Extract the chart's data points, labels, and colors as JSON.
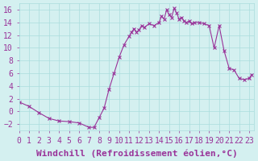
{
  "x": [
    0,
    1,
    2,
    3,
    4,
    5,
    6,
    7,
    7.5,
    8,
    8.5,
    9,
    9.5,
    10,
    10.5,
    11,
    11.25,
    11.5,
    11.75,
    12,
    12.25,
    12.5,
    13,
    13.5,
    14,
    14.25,
    14.5,
    14.75,
    15,
    15.25,
    15.5,
    15.75,
    16,
    16.25,
    16.5,
    16.75,
    17,
    17.25,
    17.5,
    18,
    18.5,
    19,
    19.5,
    20,
    20.5,
    21,
    21.5,
    22,
    22.5,
    23,
    23.25
  ],
  "y": [
    1.5,
    0.8,
    -0.2,
    -1.1,
    -1.5,
    -1.6,
    -1.8,
    -2.5,
    -2.5,
    -1.0,
    0.5,
    3.5,
    6.0,
    8.5,
    10.5,
    11.8,
    12.5,
    13.0,
    12.5,
    12.8,
    13.5,
    13.2,
    13.8,
    13.5,
    14.0,
    15.0,
    14.5,
    16.0,
    15.2,
    14.8,
    16.2,
    15.5,
    14.5,
    14.8,
    14.2,
    14.0,
    14.2,
    13.8,
    14.0,
    14.0,
    13.8,
    13.5,
    10.0,
    13.5,
    9.5,
    6.8,
    6.5,
    5.2,
    5.0,
    5.2,
    5.8
  ],
  "line_color": "#993399",
  "marker_color": "#993399",
  "bg_color": "#d4f0f0",
  "grid_color": "#aadddd",
  "xlabel": "Windchill (Refroidissement éolien,°C)",
  "xlim": [
    0,
    23.5
  ],
  "ylim": [
    -3,
    17
  ],
  "yticks": [
    -2,
    0,
    2,
    4,
    6,
    8,
    10,
    12,
    14,
    16
  ],
  "xticks": [
    0,
    1,
    2,
    3,
    4,
    5,
    6,
    7,
    8,
    9,
    10,
    11,
    12,
    13,
    14,
    15,
    16,
    17,
    18,
    19,
    20,
    21,
    22,
    23
  ],
  "tick_label_fontsize": 7,
  "xlabel_fontsize": 8
}
